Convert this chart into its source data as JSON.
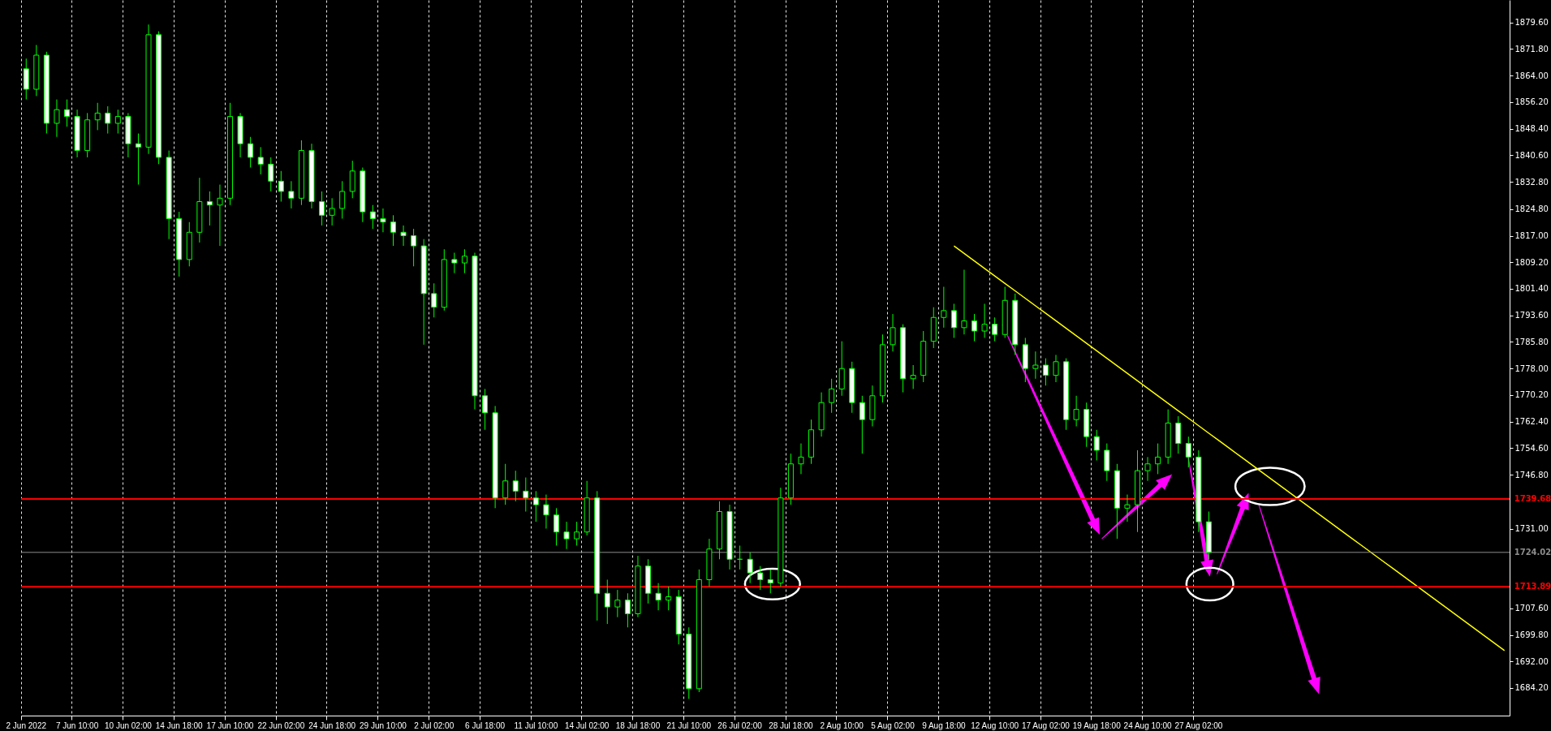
{
  "chart_data": {
    "type": "candlestick",
    "color": "#00ff00",
    "categories": [
      "2 Jun 2022",
      null,
      null,
      null,
      null,
      "7 Jun 10:00",
      null,
      null,
      null,
      null,
      "10 Jun 02:00",
      null,
      null,
      null,
      null,
      "14 Jun 18:00",
      null,
      null,
      null,
      null,
      "17 Jun 10:00",
      null,
      null,
      null,
      null,
      "22 Jun 02:00",
      null,
      null,
      null,
      null,
      "24 Jun 18:00",
      null,
      null,
      null,
      null,
      "29 Jun 10:00",
      null,
      null,
      null,
      null,
      "2 Jul 02:00",
      null,
      null,
      null,
      null,
      "6 Jul 18:00",
      null,
      null,
      null,
      null,
      "11 Jul 10:00",
      null,
      null,
      null,
      null,
      "14 Jul 02:00",
      null,
      null,
      null,
      null,
      "18 Jul 18:00",
      null,
      null,
      null,
      null,
      "21 Jul 10:00",
      null,
      null,
      null,
      null,
      "26 Jul 02:00",
      null,
      null,
      null,
      null,
      "28 Jul 18:00",
      null,
      null,
      null,
      null,
      "2 Aug 10:00",
      null,
      null,
      null,
      null,
      "5 Aug 02:00",
      null,
      null,
      null,
      null,
      "9 Aug 18:00",
      null,
      null,
      null,
      null,
      "12 Aug 10:00",
      null,
      null,
      null,
      null,
      "17 Aug 02:00",
      null,
      null,
      null,
      null,
      "19 Aug 18:00",
      null,
      null,
      null,
      null,
      "24 Aug 10:00",
      null,
      null,
      null,
      null,
      "27 Aug 02:00",
      null,
      null,
      null,
      null,
      null,
      null,
      null,
      null,
      null,
      null,
      null,
      null,
      null,
      null,
      null,
      null,
      null,
      null,
      null,
      null,
      null,
      null,
      null,
      null,
      null,
      null,
      null,
      null,
      null,
      null
    ],
    "ohlc": [
      [
        1866,
        1869,
        1857,
        1860
      ],
      [
        1860,
        1873,
        1858,
        1870
      ],
      [
        1870,
        1871,
        1847,
        1850
      ],
      [
        1850,
        1857,
        1846,
        1854
      ],
      [
        1854,
        1857,
        1849,
        1852
      ],
      [
        1852,
        1854,
        1840,
        1842
      ],
      [
        1842,
        1853,
        1840,
        1851
      ],
      [
        1851,
        1856,
        1848,
        1853
      ],
      [
        1853,
        1855,
        1847,
        1850
      ],
      [
        1850,
        1854,
        1847,
        1852
      ],
      [
        1852,
        1853,
        1840,
        1844
      ],
      [
        1844,
        1847,
        1832,
        1843
      ],
      [
        1843,
        1879,
        1841,
        1876
      ],
      [
        1876,
        1877,
        1838,
        1840
      ],
      [
        1840,
        1842,
        1816,
        1822
      ],
      [
        1822,
        1824,
        1805,
        1810
      ],
      [
        1810,
        1821,
        1808,
        1818
      ],
      [
        1818,
        1834,
        1815,
        1827
      ],
      [
        1827,
        1830,
        1820,
        1826
      ],
      [
        1826,
        1832,
        1814,
        1828
      ],
      [
        1828,
        1856,
        1826,
        1852
      ],
      [
        1852,
        1853,
        1840,
        1844
      ],
      [
        1844,
        1846,
        1837,
        1840
      ],
      [
        1840,
        1843,
        1835,
        1838
      ],
      [
        1838,
        1840,
        1830,
        1833
      ],
      [
        1833,
        1836,
        1827,
        1830
      ],
      [
        1830,
        1833,
        1825,
        1828
      ],
      [
        1828,
        1845,
        1826,
        1842
      ],
      [
        1842,
        1844,
        1825,
        1827
      ],
      [
        1827,
        1830,
        1820,
        1823
      ],
      [
        1823,
        1828,
        1820,
        1825
      ],
      [
        1825,
        1833,
        1822,
        1830
      ],
      [
        1830,
        1839,
        1828,
        1836
      ],
      [
        1836,
        1837,
        1821,
        1824
      ],
      [
        1824,
        1826,
        1819,
        1822
      ],
      [
        1822,
        1825,
        1818,
        1821
      ],
      [
        1821,
        1823,
        1814,
        1818
      ],
      [
        1818,
        1820,
        1814,
        1817
      ],
      [
        1817,
        1819,
        1808,
        1814
      ],
      [
        1814,
        1816,
        1785,
        1800
      ],
      [
        1800,
        1803,
        1793,
        1796
      ],
      [
        1796,
        1813,
        1795,
        1810
      ],
      [
        1810,
        1812,
        1806,
        1809
      ],
      [
        1809,
        1813,
        1806,
        1811
      ],
      [
        1811,
        1812,
        1766,
        1770
      ],
      [
        1770,
        1772,
        1760,
        1765
      ],
      [
        1765,
        1767,
        1737,
        1740
      ],
      [
        1740,
        1750,
        1738,
        1745
      ],
      [
        1745,
        1748,
        1739,
        1742
      ],
      [
        1742,
        1746,
        1736,
        1740
      ],
      [
        1740,
        1742,
        1733,
        1738
      ],
      [
        1738,
        1741,
        1731,
        1735
      ],
      [
        1735,
        1737,
        1726,
        1730
      ],
      [
        1730,
        1733,
        1725,
        1728
      ],
      [
        1728,
        1733,
        1726,
        1730
      ],
      [
        1730,
        1745,
        1729,
        1740
      ],
      [
        1740,
        1742,
        1704,
        1712
      ],
      [
        1712,
        1716,
        1703,
        1708
      ],
      [
        1708,
        1713,
        1705,
        1710
      ],
      [
        1710,
        1712,
        1702,
        1706
      ],
      [
        1706,
        1723,
        1705,
        1720
      ],
      [
        1720,
        1722,
        1709,
        1712
      ],
      [
        1712,
        1715,
        1707,
        1710
      ],
      [
        1710,
        1714,
        1707,
        1711
      ],
      [
        1711,
        1713,
        1697,
        1700
      ],
      [
        1700,
        1702,
        1681,
        1684
      ],
      [
        1684,
        1719,
        1683,
        1716
      ],
      [
        1716,
        1728,
        1714,
        1725
      ],
      [
        1725,
        1739,
        1722,
        1736
      ],
      [
        1736,
        1738,
        1719,
        1722
      ],
      [
        1722,
        1726,
        1719,
        1722
      ],
      [
        1722,
        1724,
        1715,
        1718
      ],
      [
        1718,
        1720,
        1713,
        1716
      ],
      [
        1716,
        1719,
        1712,
        1715
      ],
      [
        1715,
        1743,
        1714,
        1740
      ],
      [
        1740,
        1753,
        1738,
        1750
      ],
      [
        1750,
        1756,
        1747,
        1752
      ],
      [
        1752,
        1763,
        1750,
        1760
      ],
      [
        1760,
        1771,
        1758,
        1768
      ],
      [
        1768,
        1775,
        1765,
        1772
      ],
      [
        1772,
        1786,
        1770,
        1778
      ],
      [
        1778,
        1780,
        1765,
        1768
      ],
      [
        1768,
        1770,
        1753,
        1763
      ],
      [
        1763,
        1773,
        1761,
        1770
      ],
      [
        1770,
        1788,
        1768,
        1785
      ],
      [
        1785,
        1794,
        1783,
        1790
      ],
      [
        1790,
        1791,
        1771,
        1775
      ],
      [
        1775,
        1779,
        1772,
        1776
      ],
      [
        1776,
        1789,
        1774,
        1786
      ],
      [
        1786,
        1796,
        1784,
        1793
      ],
      [
        1793,
        1802,
        1790,
        1795
      ],
      [
        1795,
        1797,
        1787,
        1790
      ],
      [
        1790,
        1807,
        1788,
        1792
      ],
      [
        1792,
        1794,
        1786,
        1789
      ],
      [
        1789,
        1797,
        1787,
        1791
      ],
      [
        1791,
        1793,
        1786,
        1788
      ],
      [
        1788,
        1802,
        1787,
        1798
      ],
      [
        1798,
        1800,
        1782,
        1785
      ],
      [
        1785,
        1787,
        1774,
        1778
      ],
      [
        1778,
        1783,
        1775,
        1779
      ],
      [
        1779,
        1781,
        1773,
        1776
      ],
      [
        1776,
        1782,
        1774,
        1780
      ],
      [
        1780,
        1781,
        1760,
        1763
      ],
      [
        1763,
        1770,
        1761,
        1766
      ],
      [
        1766,
        1768,
        1755,
        1758
      ],
      [
        1758,
        1760,
        1751,
        1754
      ],
      [
        1754,
        1756,
        1745,
        1748
      ],
      [
        1748,
        1750,
        1728,
        1737
      ],
      [
        1737,
        1741,
        1733,
        1738
      ],
      [
        1738,
        1754,
        1730,
        1748
      ],
      [
        1748,
        1752,
        1745,
        1750
      ],
      [
        1750,
        1756,
        1747,
        1752
      ],
      [
        1752,
        1766,
        1750,
        1762
      ],
      [
        1762,
        1764,
        1753,
        1756
      ],
      [
        1756,
        1758,
        1749,
        1752
      ],
      [
        1752,
        1754,
        1730,
        1733
      ],
      [
        1733,
        1736,
        1722,
        1724.02
      ],
      null,
      null,
      null,
      null,
      null,
      null,
      null,
      null,
      null,
      null,
      null,
      null,
      null,
      null,
      null,
      null,
      null,
      null,
      null,
      null,
      null,
      null,
      null,
      null,
      null,
      null,
      null,
      null,
      null
    ],
    "series": [
      {
        "type": "line",
        "color": "#ffff00",
        "values": [
          null,
          null,
          null,
          null,
          null,
          null,
          null,
          null,
          null,
          null,
          null,
          null,
          null,
          null,
          null,
          null,
          null,
          null,
          null,
          null,
          null,
          null,
          null,
          null,
          null,
          null,
          null,
          null,
          null,
          null,
          null,
          null,
          null,
          null,
          null,
          null,
          null,
          null,
          null,
          null,
          null,
          null,
          null,
          null,
          null,
          null,
          null,
          null,
          null,
          null,
          null,
          null,
          null,
          null,
          null,
          null,
          null,
          null,
          null,
          null,
          null,
          null,
          null,
          null,
          null,
          null,
          null,
          null,
          null,
          null,
          null,
          null,
          null,
          null,
          null,
          null,
          null,
          null,
          null,
          null,
          null,
          null,
          null,
          null,
          null,
          null,
          null,
          null,
          null,
          null,
          null,
          1814.0,
          1811.8,
          1809.6,
          1807.4,
          1805.2,
          1803.0,
          1800.8,
          1798.6,
          1796.4,
          1794.2,
          1792.0,
          1789.8,
          1787.6,
          1785.4,
          1783.2,
          1781.0,
          1778.8,
          1776.6,
          1774.4,
          1772.2,
          1770.0,
          1767.8,
          1765.6,
          1763.4,
          1761.2,
          1759.0,
          1756.8,
          1754.6,
          1752.4,
          1750.2,
          1748.0,
          1745.8,
          1743.6,
          1741.4,
          1739.2,
          1737.0,
          1734.8,
          1732.6,
          1730.4,
          1728.2,
          1726.0,
          1723.8,
          1721.6,
          1719.4,
          1717.2,
          1715.0,
          1712.8,
          1710.6,
          1708.4,
          1706.2,
          1704.0,
          1701.8,
          1699.6,
          1697.4,
          1695.2
        ]
      }
    ],
    "ylim": [
      1676.1,
      1886.2
    ],
    "yticks": [
      {
        "value": 1879.6,
        "label": "1879.60"
      },
      {
        "value": 1871.8,
        "label": "1871.80"
      },
      {
        "value": 1864,
        "label": "1864.00"
      },
      {
        "value": 1856.2,
        "label": "1856.20"
      },
      {
        "value": 1848.4,
        "label": "1848.40"
      },
      {
        "value": 1840.6,
        "label": "1840.60"
      },
      {
        "value": 1832.8,
        "label": "1832.80"
      },
      {
        "value": 1824.8,
        "label": "1824.80"
      },
      {
        "value": 1817,
        "label": "1817.00"
      },
      {
        "value": 1809.2,
        "label": "1809.20"
      },
      {
        "value": 1801.4,
        "label": "1801.40"
      },
      {
        "value": 1793.6,
        "label": "1793.60"
      },
      {
        "value": 1785.8,
        "label": "1785.80"
      },
      {
        "value": 1778,
        "label": "1778.00"
      },
      {
        "value": 1770.2,
        "label": "1770.20"
      },
      {
        "value": 1762.4,
        "label": "1762.40"
      },
      {
        "value": 1754.6,
        "label": "1754.60"
      },
      {
        "value": 1746.8,
        "label": "1746.80"
      },
      {
        "value": 1731,
        "label": "1731.00"
      },
      {
        "value": 1707.6,
        "label": "1707.60"
      },
      {
        "value": 1699.8,
        "label": "1699.80"
      },
      {
        "value": 1692,
        "label": "1692.00"
      },
      {
        "value": 1684.2,
        "label": "1684.20"
      }
    ],
    "ref_lines": [
      {
        "axis": "y",
        "value": 1739.68,
        "label": "1739.68",
        "color": "#ff0000"
      },
      {
        "axis": "y",
        "value": 1713.89,
        "label": "1713.89",
        "color": "#ff0000"
      },
      {
        "axis": "y",
        "value": 1724.02,
        "label": "1724.02",
        "color": "#8c8c8c"
      }
    ],
    "grid": "x"
  }
}
